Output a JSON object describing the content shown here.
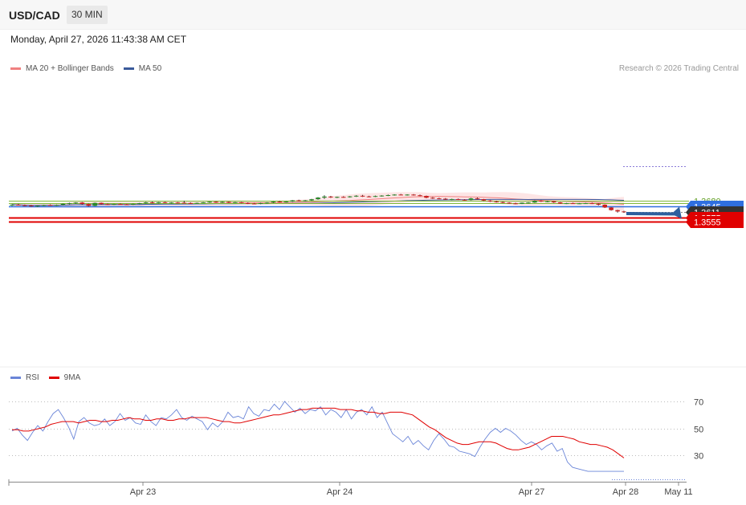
{
  "header": {
    "symbol": "USD/CAD",
    "timeframe": "30 MIN"
  },
  "datetime": "Monday, April 27, 2026 11:43:38 AM CET",
  "legend": {
    "ma20": {
      "label": "MA 20 + Bollinger Bands",
      "color": "#f08080"
    },
    "ma50": {
      "label": "MA 50",
      "color": "#3a5a9a"
    }
  },
  "copyright": "Research © 2026 Trading Central",
  "rsi_legend": {
    "rsi": {
      "label": "RSI",
      "color": "#6a85d8"
    },
    "ma9": {
      "label": "9MA",
      "color": "#e00000"
    }
  },
  "chart_data": [
    {
      "type": "line",
      "subtype": "candlestick",
      "symbol": "USD/CAD",
      "timeframe": "30 MIN",
      "x_ticks": [
        "Apr 23",
        "Apr 24",
        "Apr 27",
        "Apr 28",
        "May 11"
      ],
      "price_range": [
        1.3545,
        1.3725
      ],
      "levels": [
        {
          "value": "1.3680",
          "kind": "resistance",
          "color": "#7fb83a"
        },
        {
          "value": "1.3665",
          "kind": "resistance",
          "color": "#7fb83a"
        },
        {
          "value": "1.3645",
          "kind": "pivot",
          "color": "#2f6fe0"
        },
        {
          "value": "1.3611",
          "kind": "last",
          "color": "#333333"
        },
        {
          "value": "1.3575",
          "kind": "support",
          "color": "#e00000"
        },
        {
          "value": "1.3555",
          "kind": "support",
          "color": "#e00000"
        }
      ],
      "target_arrow": {
        "from": 1.3611,
        "to": 1.3555,
        "color": "#2d5f9e"
      },
      "candles_ohlc": [
        [
          1.365,
          1.3658,
          1.3647,
          1.3655
        ],
        [
          1.3655,
          1.366,
          1.365,
          1.3652
        ],
        [
          1.3652,
          1.3656,
          1.3646,
          1.365
        ],
        [
          1.365,
          1.3654,
          1.3643,
          1.3645
        ],
        [
          1.3645,
          1.3651,
          1.3642,
          1.3649
        ],
        [
          1.3649,
          1.3655,
          1.3647,
          1.3653
        ],
        [
          1.3653,
          1.3657,
          1.3649,
          1.3651
        ],
        [
          1.3651,
          1.3656,
          1.3648,
          1.3654
        ],
        [
          1.3654,
          1.3662,
          1.3651,
          1.366
        ],
        [
          1.366,
          1.3667,
          1.3657,
          1.3664
        ],
        [
          1.3664,
          1.367,
          1.366,
          1.3668
        ],
        [
          1.3668,
          1.3671,
          1.3655,
          1.3659
        ],
        [
          1.3659,
          1.3662,
          1.3644,
          1.3648
        ],
        [
          1.3648,
          1.3668,
          1.3646,
          1.3666
        ],
        [
          1.3666,
          1.3668,
          1.3655,
          1.3658
        ],
        [
          1.3658,
          1.3662,
          1.3653,
          1.3656
        ],
        [
          1.3656,
          1.3661,
          1.3653,
          1.3659
        ],
        [
          1.3659,
          1.3663,
          1.3655,
          1.3657
        ],
        [
          1.3657,
          1.366,
          1.3652,
          1.3655
        ],
        [
          1.3655,
          1.3662,
          1.3653,
          1.366
        ],
        [
          1.366,
          1.3666,
          1.3658,
          1.3664
        ],
        [
          1.3664,
          1.3672,
          1.3662,
          1.3669
        ],
        [
          1.3669,
          1.3674,
          1.3663,
          1.3665
        ],
        [
          1.3665,
          1.3671,
          1.3663,
          1.367
        ],
        [
          1.367,
          1.3673,
          1.3664,
          1.3666
        ],
        [
          1.3666,
          1.367,
          1.3662,
          1.3668
        ],
        [
          1.3668,
          1.3671,
          1.3664,
          1.3667
        ],
        [
          1.3667,
          1.3679,
          1.3662,
          1.3665
        ],
        [
          1.3665,
          1.3669,
          1.3661,
          1.3663
        ],
        [
          1.3663,
          1.3668,
          1.3661,
          1.3666
        ],
        [
          1.3666,
          1.3671,
          1.3664,
          1.3669
        ],
        [
          1.3669,
          1.3675,
          1.3666,
          1.3673
        ],
        [
          1.3673,
          1.3676,
          1.3667,
          1.367
        ],
        [
          1.367,
          1.3675,
          1.3666,
          1.3672
        ],
        [
          1.3672,
          1.3674,
          1.3665,
          1.3667
        ],
        [
          1.3667,
          1.3672,
          1.3664,
          1.367
        ],
        [
          1.367,
          1.3672,
          1.3663,
          1.3665
        ],
        [
          1.3665,
          1.3669,
          1.3659,
          1.3662
        ],
        [
          1.3662,
          1.3666,
          1.3657,
          1.366
        ],
        [
          1.366,
          1.3667,
          1.3658,
          1.3665
        ],
        [
          1.3665,
          1.367,
          1.3662,
          1.3668
        ],
        [
          1.3668,
          1.3676,
          1.3665,
          1.3674
        ],
        [
          1.3674,
          1.3678,
          1.3668,
          1.3671
        ],
        [
          1.3671,
          1.3676,
          1.3668,
          1.3674
        ],
        [
          1.3674,
          1.3683,
          1.3672,
          1.3681
        ],
        [
          1.3681,
          1.3685,
          1.3674,
          1.3677
        ],
        [
          1.3677,
          1.3683,
          1.3674,
          1.3681
        ],
        [
          1.3681,
          1.369,
          1.3678,
          1.3688
        ],
        [
          1.3688,
          1.3701,
          1.3685,
          1.3698
        ],
        [
          1.3698,
          1.3712,
          1.369,
          1.3704
        ],
        [
          1.3704,
          1.3708,
          1.3696,
          1.3699
        ],
        [
          1.3699,
          1.3704,
          1.3695,
          1.3702
        ],
        [
          1.3702,
          1.3706,
          1.3697,
          1.37
        ],
        [
          1.37,
          1.3707,
          1.3698,
          1.3705
        ],
        [
          1.3705,
          1.3712,
          1.3702,
          1.3709
        ],
        [
          1.3709,
          1.3714,
          1.3702,
          1.3705
        ],
        [
          1.3705,
          1.3709,
          1.37,
          1.3703
        ],
        [
          1.3703,
          1.371,
          1.3701,
          1.3707
        ],
        [
          1.3707,
          1.3712,
          1.3704,
          1.371
        ],
        [
          1.371,
          1.3716,
          1.3707,
          1.3713
        ],
        [
          1.3713,
          1.3718,
          1.371,
          1.3716
        ],
        [
          1.3716,
          1.372,
          1.3712,
          1.3714
        ],
        [
          1.3714,
          1.3718,
          1.371,
          1.3716
        ],
        [
          1.3716,
          1.3719,
          1.371,
          1.3712
        ],
        [
          1.3712,
          1.3716,
          1.3706,
          1.3708
        ],
        [
          1.3708,
          1.371,
          1.3694,
          1.3697
        ],
        [
          1.3697,
          1.3701,
          1.369,
          1.3693
        ],
        [
          1.3693,
          1.3697,
          1.3688,
          1.3691
        ],
        [
          1.3691,
          1.3695,
          1.3684,
          1.3686
        ],
        [
          1.3686,
          1.3691,
          1.3682,
          1.3689
        ],
        [
          1.3689,
          1.3692,
          1.3683,
          1.3685
        ],
        [
          1.3685,
          1.3688,
          1.368,
          1.3683
        ],
        [
          1.3683,
          1.3696,
          1.3681,
          1.3693
        ],
        [
          1.3693,
          1.3698,
          1.3686,
          1.3688
        ],
        [
          1.3688,
          1.369,
          1.3677,
          1.368
        ],
        [
          1.368,
          1.3683,
          1.3672,
          1.3675
        ],
        [
          1.3675,
          1.3679,
          1.3668,
          1.3671
        ],
        [
          1.3671,
          1.3674,
          1.3664,
          1.3667
        ],
        [
          1.3667,
          1.367,
          1.3661,
          1.3663
        ],
        [
          1.3663,
          1.3667,
          1.3658,
          1.366
        ],
        [
          1.366,
          1.3668,
          1.3659,
          1.3667
        ],
        [
          1.3667,
          1.367,
          1.3663,
          1.3668
        ],
        [
          1.3668,
          1.3681,
          1.3666,
          1.3679
        ],
        [
          1.3679,
          1.3682,
          1.3672,
          1.3675
        ],
        [
          1.3675,
          1.3679,
          1.367,
          1.3676
        ],
        [
          1.3676,
          1.3678,
          1.3666,
          1.3669
        ],
        [
          1.3669,
          1.3671,
          1.366,
          1.3662
        ],
        [
          1.3662,
          1.3666,
          1.3659,
          1.3664
        ],
        [
          1.3664,
          1.3667,
          1.366,
          1.3662
        ],
        [
          1.3662,
          1.3665,
          1.3659,
          1.3663
        ],
        [
          1.3663,
          1.3666,
          1.366,
          1.3664
        ],
        [
          1.3664,
          1.3667,
          1.3659,
          1.3661
        ],
        [
          1.3661,
          1.3664,
          1.365,
          1.3655
        ],
        [
          1.3655,
          1.3657,
          1.3635,
          1.3638
        ],
        [
          1.3638,
          1.364,
          1.3619,
          1.3622
        ],
        [
          1.3622,
          1.3624,
          1.3607,
          1.3614
        ],
        [
          1.3614,
          1.3618,
          1.3608,
          1.3611
        ]
      ]
    },
    {
      "type": "line",
      "title": "RSI",
      "yticks": [
        "70",
        "50",
        "30"
      ],
      "ylim": [
        20,
        82
      ],
      "series": [
        {
          "name": "RSI",
          "color": "#6a85d8",
          "values": [
            48,
            50,
            45,
            41,
            47,
            52,
            48,
            55,
            61,
            64,
            58,
            51,
            42,
            55,
            58,
            54,
            52,
            53,
            57,
            52,
            55,
            61,
            56,
            58,
            54,
            53,
            60,
            55,
            52,
            58,
            57,
            60,
            64,
            58,
            56,
            59,
            57,
            55,
            49,
            54,
            51,
            55,
            62,
            58,
            59,
            57,
            66,
            61,
            59,
            64,
            63,
            68,
            64,
            70,
            66,
            62,
            65,
            61,
            64,
            63,
            66,
            60,
            64,
            62,
            58,
            64,
            57,
            62,
            64,
            60,
            66,
            58,
            62,
            54,
            46,
            43,
            40,
            44,
            38,
            41,
            37,
            34,
            41,
            46,
            42,
            37,
            36,
            33,
            32,
            31,
            29,
            36,
            42,
            47,
            50,
            47,
            50,
            48,
            45,
            41,
            38,
            40,
            38,
            34,
            37,
            39,
            33,
            35,
            25,
            21,
            20,
            19,
            18,
            18,
            18,
            18,
            18,
            18,
            18,
            18
          ]
        },
        {
          "name": "9MA",
          "color": "#e00000",
          "values": [
            49,
            49,
            48,
            48,
            49,
            50,
            51,
            53,
            54,
            55,
            55,
            55,
            54,
            55,
            56,
            56,
            55,
            55,
            56,
            56,
            57,
            58,
            57,
            57,
            56,
            56,
            57,
            57,
            56,
            56,
            57,
            57,
            58,
            58,
            58,
            58,
            57,
            56,
            55,
            55,
            54,
            54,
            55,
            56,
            57,
            58,
            59,
            60,
            60,
            61,
            62,
            63,
            64,
            64,
            65,
            65,
            65,
            65,
            65,
            64,
            64,
            64,
            63,
            63,
            62,
            62,
            61,
            61,
            62,
            62,
            62,
            61,
            60,
            57,
            54,
            51,
            49,
            46,
            43,
            41,
            39,
            38,
            38,
            39,
            40,
            40,
            40,
            39,
            37,
            35,
            34,
            34,
            35,
            36,
            38,
            40,
            42,
            44,
            44,
            44,
            43,
            42,
            40,
            39,
            38,
            38,
            37,
            36,
            34,
            31,
            28
          ]
        }
      ]
    }
  ]
}
